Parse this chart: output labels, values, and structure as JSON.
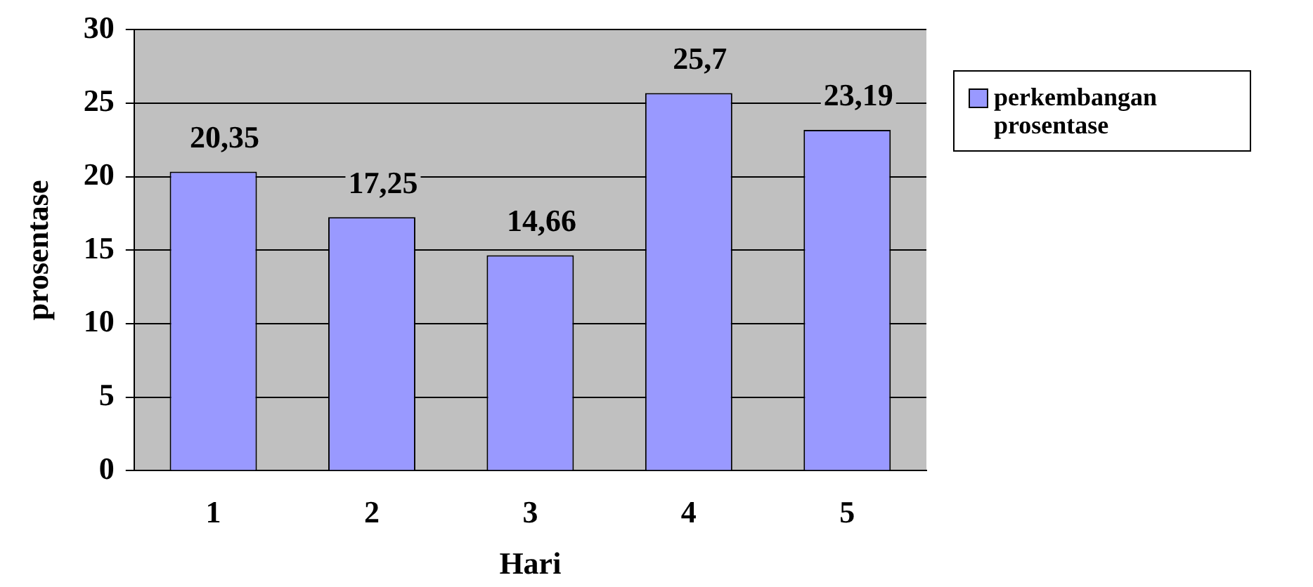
{
  "chart_data": {
    "type": "bar",
    "xlabel": "Hari",
    "ylabel": "prosentase",
    "categories": [
      "1",
      "2",
      "3",
      "4",
      "5"
    ],
    "series": [
      {
        "name": "perkembangan prosentase",
        "color": "#9999ff",
        "values": [
          20.35,
          17.25,
          14.66,
          25.7,
          23.19
        ],
        "value_labels": [
          "20,35",
          "17,25",
          "14,66",
          "25,7",
          "23,19"
        ]
      }
    ],
    "ylim": [
      0,
      30
    ],
    "yticks": [
      0,
      5,
      10,
      15,
      20,
      25,
      30
    ],
    "grid": "y",
    "legend": "top right"
  }
}
